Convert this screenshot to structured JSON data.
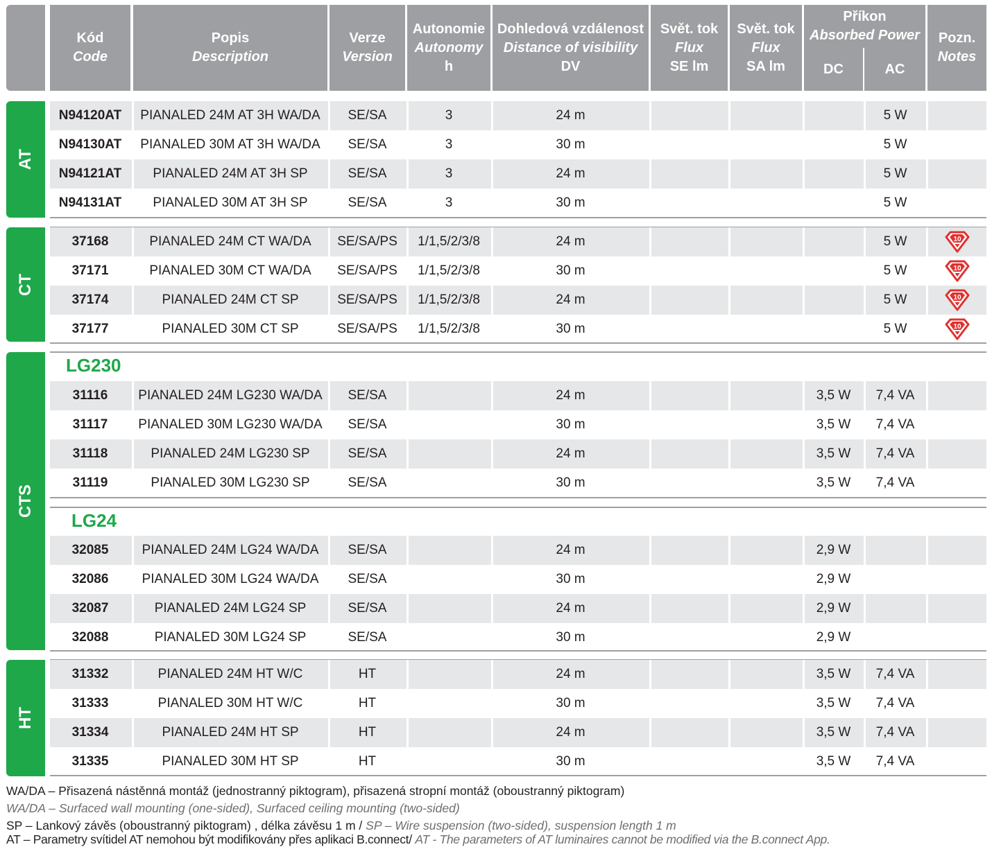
{
  "header": {
    "code": [
      "Kód",
      "Code"
    ],
    "description": [
      "Popis",
      "Description"
    ],
    "version": [
      "Verze",
      "Version"
    ],
    "autonomy": [
      "Autonomie",
      "Autonomy",
      "h"
    ],
    "distance": [
      "Dohledová vzdálenost",
      "Distance of visibility",
      "DV"
    ],
    "flux_se": [
      "Svět. tok",
      "Flux",
      "SE lm"
    ],
    "flux_sa": [
      "Svět. tok",
      "Flux",
      "SA lm"
    ],
    "power": [
      "Příkon",
      "Absorbed Power"
    ],
    "dc": "DC",
    "ac": "AC",
    "notes": [
      "Pozn.",
      "Notes"
    ]
  },
  "groups": {
    "at": {
      "label": "AT",
      "rows": [
        {
          "code": "N94120AT",
          "desc": "PIANALED 24M AT 3H WA/DA",
          "version": "SE/SA",
          "autonomy": "3",
          "dv": "24 m",
          "dc": "",
          "ac": "5 W",
          "note": false
        },
        {
          "code": "N94130AT",
          "desc": "PIANALED 30M AT 3H WA/DA",
          "version": "SE/SA",
          "autonomy": "3",
          "dv": "30 m",
          "dc": "",
          "ac": "5 W",
          "note": false
        },
        {
          "code": "N94121AT",
          "desc": "PIANALED 24M AT 3H  SP",
          "version": "SE/SA",
          "autonomy": "3",
          "dv": "24 m",
          "dc": "",
          "ac": "5 W",
          "note": false
        },
        {
          "code": "N94131AT",
          "desc": "PIANALED 30M AT 3H  SP",
          "version": "SE/SA",
          "autonomy": "3",
          "dv": "30 m",
          "dc": "",
          "ac": "5 W",
          "note": false
        }
      ]
    },
    "ct": {
      "label": "CT",
      "rows": [
        {
          "code": "37168",
          "desc": "PIANALED 24M CT WA/DA",
          "version": "SE/SA/PS",
          "autonomy": "1/1,5/2/3/8",
          "dv": "24 m",
          "dc": "",
          "ac": "5 W",
          "note": true
        },
        {
          "code": "37171",
          "desc": "PIANALED 30M CT WA/DA",
          "version": "SE/SA/PS",
          "autonomy": "1/1,5/2/3/8",
          "dv": "30 m",
          "dc": "",
          "ac": "5 W",
          "note": true
        },
        {
          "code": "37174",
          "desc": "PIANALED 24M CT SP",
          "version": "SE/SA/PS",
          "autonomy": "1/1,5/2/3/8",
          "dv": "24 m",
          "dc": "",
          "ac": "5 W",
          "note": true
        },
        {
          "code": "37177",
          "desc": "PIANALED 30M CT SP",
          "version": "SE/SA/PS",
          "autonomy": "1/1,5/2/3/8",
          "dv": "30 m",
          "dc": "",
          "ac": "5 W",
          "note": true
        }
      ]
    },
    "cts": {
      "label": "CTS",
      "sub1": "LG230",
      "rows1": [
        {
          "code": "31116",
          "desc": "PIANALED 24M LG230 WA/DA",
          "version": "SE/SA",
          "autonomy": "",
          "dv": "24 m",
          "dc": "3,5 W",
          "ac": "7,4 VA",
          "note": false
        },
        {
          "code": "31117",
          "desc": "PIANALED 30M LG230 WA/DA",
          "version": "SE/SA",
          "autonomy": "",
          "dv": "30 m",
          "dc": "3,5 W",
          "ac": "7,4 VA",
          "note": false
        },
        {
          "code": "31118",
          "desc": "PIANALED 24M LG230 SP",
          "version": "SE/SA",
          "autonomy": "",
          "dv": "24 m",
          "dc": "3,5 W",
          "ac": "7,4 VA",
          "note": false
        },
        {
          "code": "31119",
          "desc": "PIANALED 30M LG230 SP",
          "version": "SE/SA",
          "autonomy": "",
          "dv": "30 m",
          "dc": "3,5 W",
          "ac": "7,4 VA",
          "note": false
        }
      ],
      "sub2": "LG24",
      "rows2": [
        {
          "code": "32085",
          "desc": "PIANALED 24M LG24 WA/DA",
          "version": "SE/SA",
          "autonomy": "",
          "dv": "24 m",
          "dc": "2,9 W",
          "ac": "",
          "note": false
        },
        {
          "code": "32086",
          "desc": "PIANALED 30M LG24 WA/DA",
          "version": "SE/SA",
          "autonomy": "",
          "dv": "30 m",
          "dc": "2,9 W",
          "ac": "",
          "note": false
        },
        {
          "code": "32087",
          "desc": "PIANALED 24M LG24 SP",
          "version": "SE/SA",
          "autonomy": "",
          "dv": "24 m",
          "dc": "2,9 W",
          "ac": "",
          "note": false
        },
        {
          "code": "32088",
          "desc": "PIANALED 30M LG24 SP",
          "version": "SE/SA",
          "autonomy": "",
          "dv": "30 m",
          "dc": "2,9 W",
          "ac": "",
          "note": false
        }
      ]
    },
    "ht": {
      "label": "HT",
      "rows": [
        {
          "code": "31332",
          "desc": "PIANALED 24M HT W/C",
          "version": "HT",
          "autonomy": "",
          "dv": "24 m",
          "dc": "3,5 W",
          "ac": "7,4 VA",
          "note": false
        },
        {
          "code": "31333",
          "desc": "PIANALED 30M HT W/C",
          "version": "HT",
          "autonomy": "",
          "dv": "30 m",
          "dc": "3,5 W",
          "ac": "7,4 VA",
          "note": false
        },
        {
          "code": "31334",
          "desc": "PIANALED 24M HT SP",
          "version": "HT",
          "autonomy": "",
          "dv": "24 m",
          "dc": "3,5 W",
          "ac": "7,4 VA",
          "note": false
        },
        {
          "code": "31335",
          "desc": "PIANALED 30M HT SP",
          "version": "HT",
          "autonomy": "",
          "dv": "30 m",
          "dc": "3,5 W",
          "ac": "7,4 VA",
          "note": false
        }
      ]
    }
  },
  "badge_text": "10",
  "footnotes": {
    "l1": "WA/DA – Přisazená nástěnná montáž (jednostranný piktogram),  přisazená stropní montáž (oboustranný piktogram)",
    "l2": "WA/DA – Surfaced wall mounting (one-sided), Surfaced ceiling mounting (two-sided)",
    "l3a": "SP – Lankový závěs (oboustranný piktogram) , délka závěsu 1 m  / ",
    "l3b": "SP – Wire suspension (two-sided), suspension length 1 m",
    "l4a": "AT – Parametry svítidel AT nemohou být modifikovány přes aplikaci B.connect/ ",
    "l4b": "AT - The parameters of AT luminaires cannot be modified via the B.connect App."
  },
  "colors": {
    "green": "#1ea84a",
    "header_gray": "#9d9fa2",
    "row_gray": "#e6e7e8",
    "badge_red": "#e0312f"
  }
}
